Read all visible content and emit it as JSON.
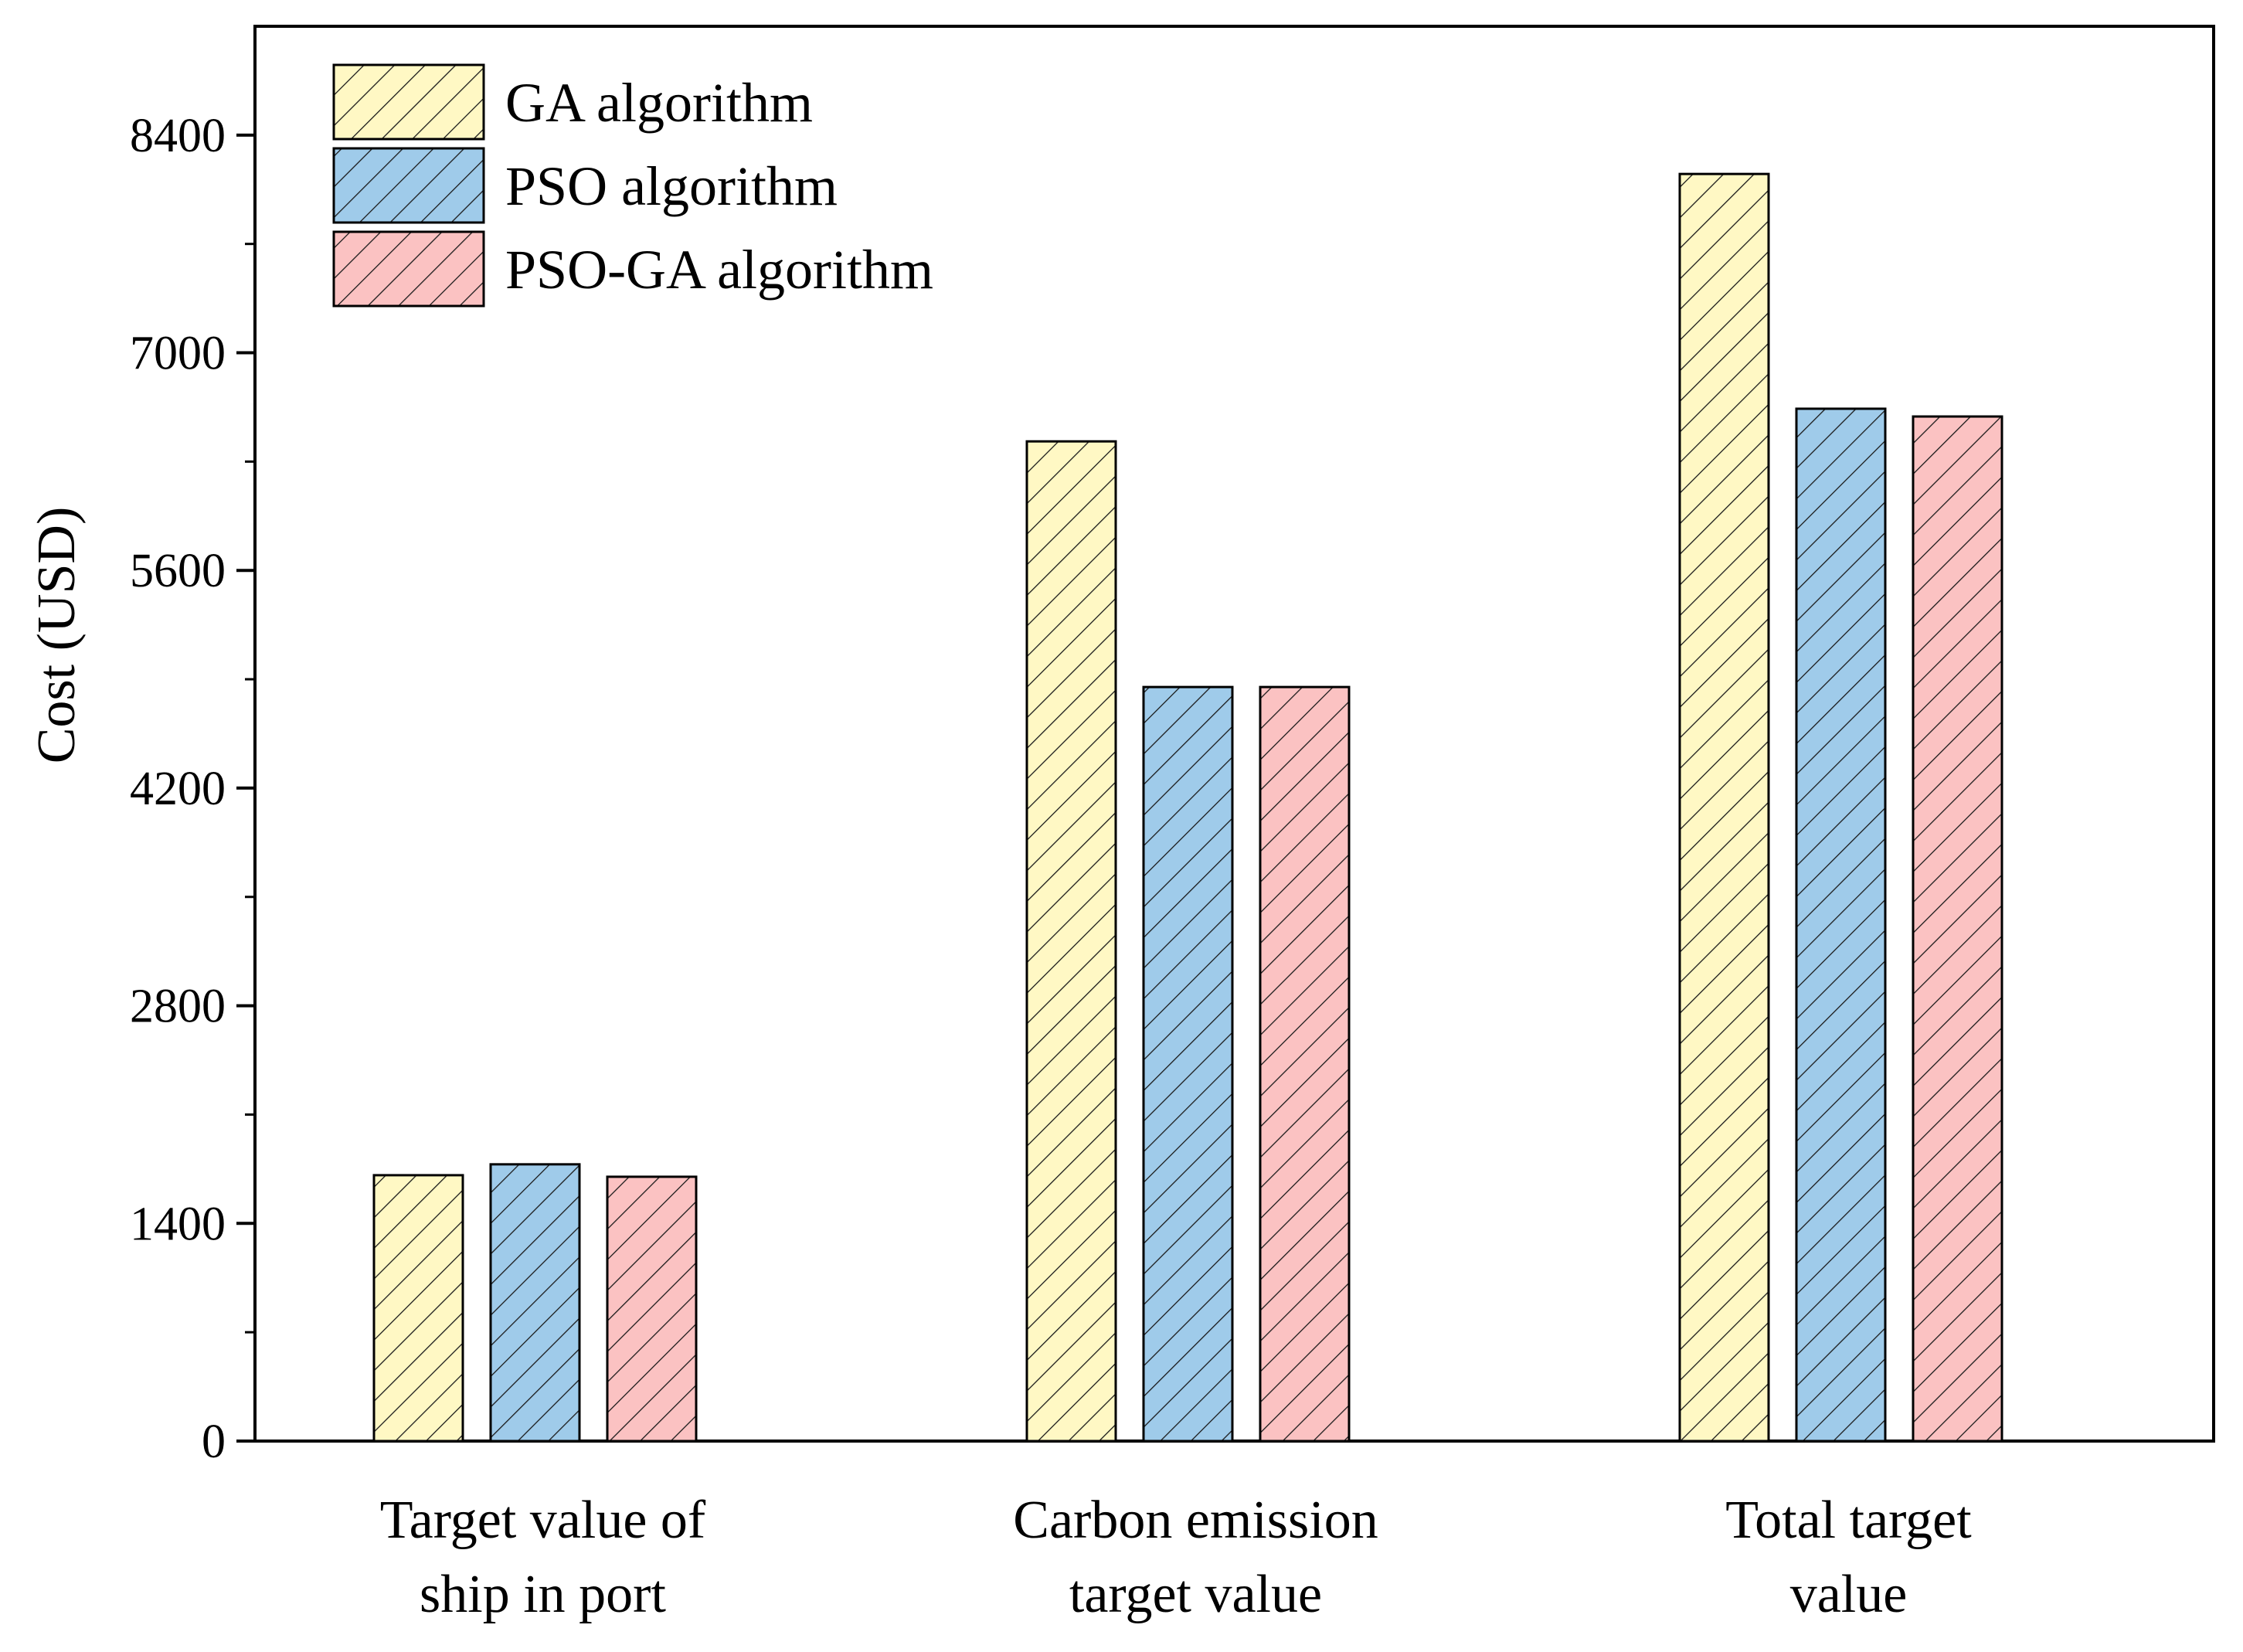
{
  "chart_data": {
    "type": "bar",
    "categories": [
      [
        "Target value of",
        "ship in port"
      ],
      [
        "Carbon emission",
        "target value"
      ],
      [
        "Total target",
        "value"
      ]
    ],
    "series": [
      {
        "name": "GA algorithm",
        "color": "#fff8c4",
        "values": [
          1710,
          6430,
          8150
        ]
      },
      {
        "name": "PSO algorithm",
        "color": "#9fcbea",
        "values": [
          1780,
          4850,
          6640
        ]
      },
      {
        "name": "PSO-GA algorithm",
        "color": "#fbc2c2",
        "values": [
          1700,
          4850,
          6590
        ]
      }
    ],
    "title": "",
    "xlabel": "",
    "ylabel": "Cost (USD)",
    "ylim": [
      0,
      9100
    ],
    "yticks": [
      0,
      1400,
      2800,
      4200,
      5600,
      7000,
      8400
    ],
    "yticks_minor": [
      700,
      2100,
      3500,
      4900,
      6300,
      7700
    ],
    "grid": false,
    "legend_position": "top-left",
    "hatch": "diagonal"
  }
}
